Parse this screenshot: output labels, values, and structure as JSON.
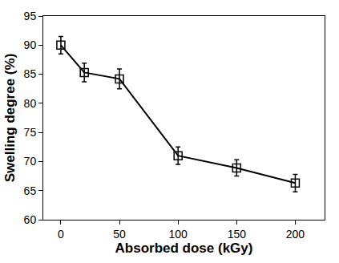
{
  "chart_data": {
    "type": "line",
    "x": [
      0,
      20,
      50,
      100,
      150,
      200
    ],
    "values": [
      90.0,
      85.3,
      84.2,
      71.0,
      68.9,
      66.3
    ],
    "errors": [
      1.5,
      1.6,
      1.7,
      1.5,
      1.4,
      1.5
    ],
    "xlabel": "Absorbed dose (kGy)",
    "ylabel": "Swelling degree (%)",
    "xlim": [
      -15,
      225
    ],
    "xticks": [
      0,
      50,
      100,
      150,
      200
    ],
    "ylim": [
      60,
      95
    ],
    "yticks": [
      60,
      65,
      70,
      75,
      80,
      85,
      90,
      95
    ],
    "color": "#000000",
    "marker": "square-open",
    "line_style": "solid",
    "grid": false
  }
}
